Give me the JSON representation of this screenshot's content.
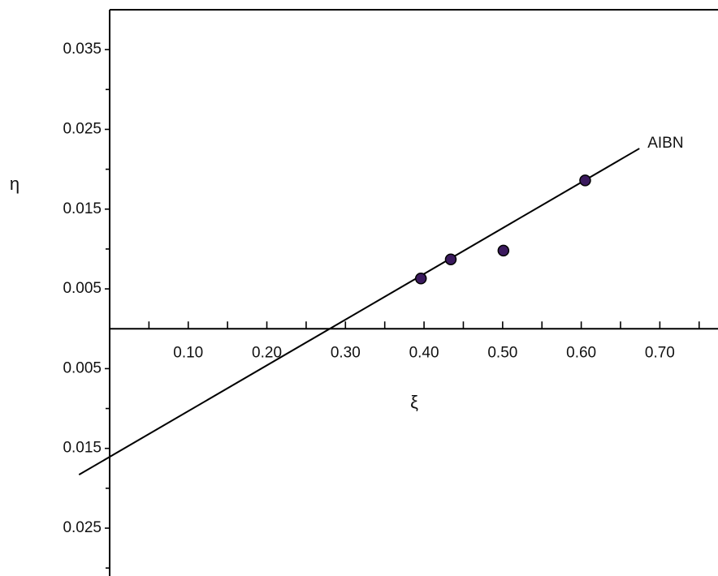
{
  "chart_data": {
    "type": "scatter",
    "x_label": "ξ",
    "y_label": "η",
    "xlim": [
      0,
      0.774
    ],
    "ylim": [
      -0.031,
      0.04
    ],
    "xticks": [
      {
        "value": 0.1,
        "label": "0.10"
      },
      {
        "value": 0.2,
        "label": "0.20"
      },
      {
        "value": 0.3,
        "label": "0.30"
      },
      {
        "value": 0.4,
        "label": "0.40"
      },
      {
        "value": 0.5,
        "label": "0.50"
      },
      {
        "value": 0.6,
        "label": "0.60"
      },
      {
        "value": 0.7,
        "label": "0.70"
      }
    ],
    "xminorticks": [
      0.05,
      0.15,
      0.25,
      0.35,
      0.45,
      0.55,
      0.65,
      0.75
    ],
    "yticks": [
      {
        "value": 0.035,
        "label": "0.035"
      },
      {
        "value": 0.025,
        "label": "0.025"
      },
      {
        "value": 0.015,
        "label": "0.015"
      },
      {
        "value": 0.005,
        "label": "0.005"
      },
      {
        "value": -0.005,
        "label": "0.005"
      },
      {
        "value": -0.015,
        "label": "0.015"
      },
      {
        "value": -0.025,
        "label": "0.025"
      }
    ],
    "yminorticks": [
      0.03,
      0.02,
      0.01,
      -0.01,
      -0.02,
      -0.03
    ],
    "points": {
      "color": "#3b1a5e",
      "x": [
        0.396,
        0.434,
        0.501,
        0.605
      ],
      "y": [
        0.0063,
        0.0087,
        0.0098,
        0.0186
      ]
    },
    "fit_line": {
      "name": "AIBN",
      "color": "#000000",
      "x": [
        -0.039,
        0.674
      ],
      "y": [
        -0.0183,
        0.0226
      ]
    }
  }
}
